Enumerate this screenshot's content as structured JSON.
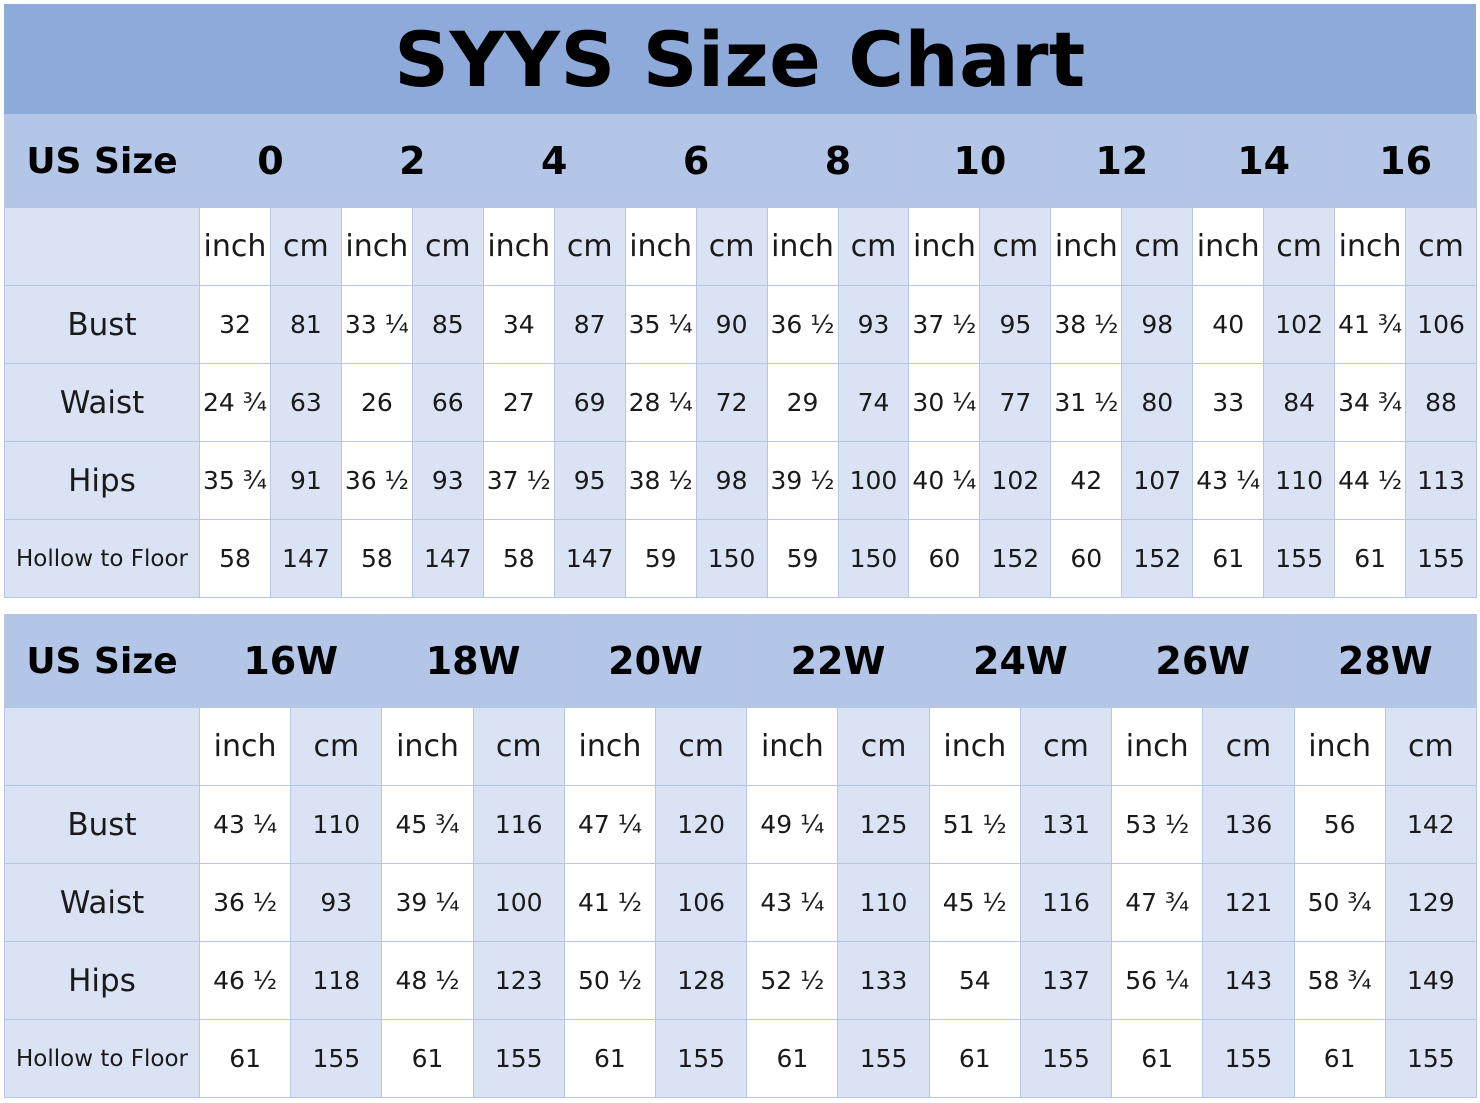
{
  "title": "SYYS Size Chart",
  "tables": [
    {
      "corner_label": "US Size",
      "sizes": [
        "0",
        "2",
        "4",
        "6",
        "8",
        "10",
        "12",
        "14",
        "16"
      ],
      "unit_labels": {
        "inch": "inch",
        "cm": "cm"
      },
      "rows": [
        {
          "label": "Bust",
          "inch": [
            "32",
            "33 ¼",
            "34",
            "35 ¼",
            "36 ½",
            "37 ½",
            "38 ½",
            "40",
            "41 ¾"
          ],
          "cm": [
            "81",
            "85",
            "87",
            "90",
            "93",
            "95",
            "98",
            "102",
            "106"
          ]
        },
        {
          "label": "Waist",
          "inch": [
            "24 ¾",
            "26",
            "27",
            "28 ¼",
            "29",
            "30 ¼",
            "31 ½",
            "33",
            "34 ¾"
          ],
          "cm": [
            "63",
            "66",
            "69",
            "72",
            "74",
            "77",
            "80",
            "84",
            "88"
          ]
        },
        {
          "label": "Hips",
          "inch": [
            "35 ¾",
            "36 ½",
            "37 ½",
            "38 ½",
            "39 ½",
            "40 ¼",
            "42",
            "43 ¼",
            "44 ½"
          ],
          "cm": [
            "91",
            "93",
            "95",
            "98",
            "100",
            "102",
            "107",
            "110",
            "113"
          ]
        },
        {
          "label": "Hollow to Floor",
          "inch": [
            "58",
            "58",
            "58",
            "59",
            "59",
            "60",
            "60",
            "61",
            "61"
          ],
          "cm": [
            "147",
            "147",
            "147",
            "150",
            "150",
            "152",
            "152",
            "155",
            "155"
          ]
        }
      ]
    },
    {
      "corner_label": "US Size",
      "sizes": [
        "16W",
        "18W",
        "20W",
        "22W",
        "24W",
        "26W",
        "28W"
      ],
      "unit_labels": {
        "inch": "inch",
        "cm": "cm"
      },
      "rows": [
        {
          "label": "Bust",
          "inch": [
            "43 ¼",
            "45 ¾",
            "47 ¼",
            "49 ¼",
            "51 ½",
            "53 ½",
            "56"
          ],
          "cm": [
            "110",
            "116",
            "120",
            "125",
            "131",
            "136",
            "142"
          ]
        },
        {
          "label": "Waist",
          "inch": [
            "36 ½",
            "39 ¼",
            "41 ½",
            "43 ¼",
            "45 ½",
            "47 ¾",
            "50 ¾"
          ],
          "cm": [
            "93",
            "100",
            "106",
            "110",
            "116",
            "121",
            "129"
          ]
        },
        {
          "label": "Hips",
          "inch": [
            "46 ½",
            "48 ½",
            "50 ½",
            "52 ½",
            "54",
            "56 ¼",
            "58 ¾"
          ],
          "cm": [
            "118",
            "123",
            "128",
            "133",
            "137",
            "143",
            "149"
          ]
        },
        {
          "label": "Hollow to Floor",
          "inch": [
            "61",
            "61",
            "61",
            "61",
            "61",
            "61",
            "61"
          ],
          "cm": [
            "155",
            "155",
            "155",
            "155",
            "155",
            "155",
            "155"
          ]
        }
      ]
    }
  ]
}
